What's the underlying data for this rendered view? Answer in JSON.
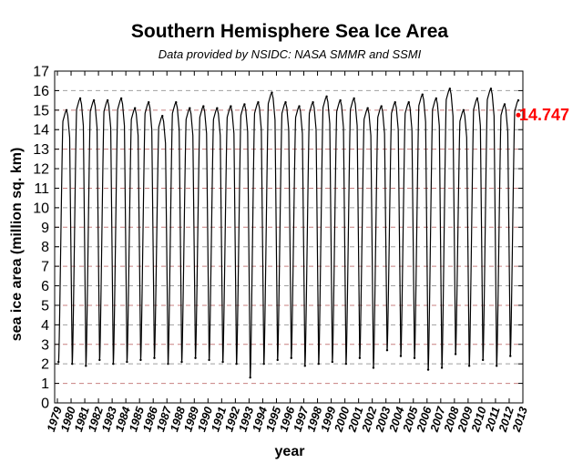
{
  "chart_data": {
    "type": "line",
    "title": "Southern Hemisphere Sea Ice Area",
    "subtitle": "Data provided by NSIDC: NASA SMMR and SSMI",
    "xlabel": "year",
    "ylabel": "sea ice area (million sq. km)",
    "xlim": [
      1978.8,
      2013
    ],
    "ylim": [
      0,
      17
    ],
    "y_ticks": [
      "0",
      "1",
      "2",
      "3",
      "4",
      "5",
      "6",
      "7",
      "8",
      "9",
      "10",
      "11",
      "12",
      "13",
      "14",
      "15",
      "16",
      "17"
    ],
    "x_ticks": [
      "1979",
      "1980",
      "1981",
      "1982",
      "1983",
      "1984",
      "1985",
      "1986",
      "1987",
      "1988",
      "1989",
      "1990",
      "1991",
      "1992",
      "1993",
      "1994",
      "1995",
      "1996",
      "1997",
      "1998",
      "1999",
      "2000",
      "2001",
      "2002",
      "2003",
      "2004",
      "2005",
      "2006",
      "2007",
      "2008",
      "2009",
      "2010",
      "2011",
      "2012",
      "2013"
    ],
    "grid": true,
    "series": [
      {
        "color": "#000000",
        "min_date": [
          "1979-02",
          "1980-02",
          "1981-02",
          "1982-02",
          "1983-02",
          "1984-02",
          "1985-02",
          "1986-02",
          "1987-02",
          "1988-02",
          "1989-02",
          "1990-02",
          "1991-02",
          "1992-02",
          "1993-02",
          "1994-02",
          "1995-02",
          "1996-02",
          "1997-02",
          "1998-02",
          "1999-02",
          "2000-02",
          "2001-02",
          "2002-02",
          "2003-02",
          "2004-02",
          "2005-02",
          "2006-02",
          "2007-02",
          "2008-02",
          "2009-02",
          "2010-02",
          "2011-02",
          "2012-02"
        ],
        "min_values": [
          2.1,
          2.0,
          1.9,
          2.2,
          2.0,
          2.1,
          2.2,
          2.3,
          2.0,
          2.1,
          2.3,
          2.2,
          2.1,
          2.0,
          1.3,
          2.0,
          2.2,
          2.3,
          1.9,
          2.0,
          2.1,
          2.0,
          2.3,
          1.8,
          2.7,
          2.4,
          2.3,
          1.7,
          1.8,
          2.5,
          1.9,
          2.2,
          1.9,
          2.4
        ],
        "max_date": [
          "1979-09",
          "1980-09",
          "1981-09",
          "1982-09",
          "1983-09",
          "1984-09",
          "1985-09",
          "1986-09",
          "1987-09",
          "1988-09",
          "1989-09",
          "1990-09",
          "1991-09",
          "1992-09",
          "1993-09",
          "1994-09",
          "1995-09",
          "1996-09",
          "1997-09",
          "1998-09",
          "1999-09",
          "2000-09",
          "2001-09",
          "2002-09",
          "2003-09",
          "2004-09",
          "2005-09",
          "2006-09",
          "2007-09",
          "2008-09",
          "2009-09",
          "2010-09",
          "2011-09",
          "2012-09"
        ],
        "max_values": [
          15.0,
          15.6,
          15.5,
          15.5,
          15.6,
          15.1,
          15.4,
          14.7,
          15.4,
          15.1,
          15.2,
          15.1,
          15.2,
          15.3,
          15.4,
          15.9,
          15.4,
          15.2,
          15.4,
          15.7,
          15.5,
          15.6,
          15.1,
          15.2,
          15.4,
          15.4,
          15.8,
          15.6,
          16.1,
          15.0,
          15.6,
          16.1,
          15.3,
          15.5
        ]
      }
    ],
    "latest_value_label": "14.747",
    "latest_value": 14.747,
    "latest_date": "2012-09"
  }
}
